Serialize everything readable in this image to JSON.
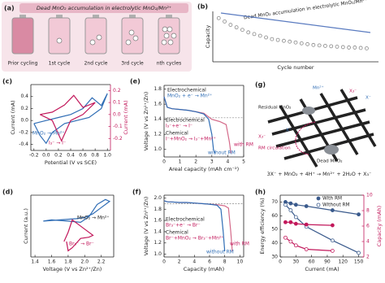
{
  "panel_a": {
    "panel": "(a)",
    "title": "Dead MnO₂ accumulation in electrolytic MnO₂/Mn²⁺",
    "stages": [
      "Prior cycling",
      "1st cycle",
      "2nd cycle",
      "3rd cycle",
      "nth cycles"
    ]
  },
  "panel_g": {
    "panel": "(g)",
    "labels": [
      "Mn²⁺",
      "X₃⁻",
      "Residual MnO₂",
      "X⁻",
      "X₃⁻",
      "RM circulation",
      "X⁻",
      "Dead MnO₂"
    ],
    "equation": "3X⁻ + MnO₂ + 4H⁺ → Mn²⁺ + 2H₂O + X₃⁻"
  },
  "chart_data": [
    {
      "type": "scatter",
      "panel": "(b)",
      "x_label": "Cycle number",
      "y_label": "Capacity",
      "annotations": [
        "Dead MnO₂ accumulation in electrolytic MnO₂/Mn²⁺"
      ],
      "xlim": [
        0,
        28
      ],
      "ylim": [
        3,
        9
      ],
      "series": [
        {
          "color": "#888888",
          "marker": "open",
          "x": [
            1,
            2,
            3,
            4,
            5,
            6,
            7,
            8,
            9,
            10,
            11,
            12,
            13,
            14,
            15,
            16,
            17,
            18,
            19,
            20,
            21,
            22,
            23,
            24,
            25,
            26
          ],
          "values": [
            8.2,
            7.8,
            7.4,
            7.1,
            6.8,
            6.5,
            6.3,
            6.1,
            5.9,
            5.7,
            5.6,
            5.5,
            5.4,
            5.3,
            5.2,
            5.1,
            5.0,
            4.95,
            4.9,
            4.85,
            4.8,
            4.75,
            4.7,
            4.7,
            4.65,
            4.6
          ]
        }
      ]
    },
    {
      "type": "line",
      "panel": "(c)",
      "x_label": "Potential (V vs SCE)",
      "y_label": "Current (mA)",
      "y2_label": "Current (mA)",
      "annotations": [
        "MnO₂ → Mn²⁺",
        "I₃⁻ → I⁻"
      ],
      "xlim": [
        -0.25,
        1.05
      ],
      "xticks": [
        -0.2,
        {
          "value": 0,
          "label": "0.0"
        },
        0.2,
        0.4,
        0.6,
        0.8,
        {
          "value": 1,
          "label": "1.0"
        }
      ],
      "ylim": [
        -0.5,
        0.6
      ],
      "yticks": [
        -0.4,
        -0.2,
        {
          "value": 0,
          "label": "0.0"
        },
        0.2,
        0.4
      ],
      "y2lim": [
        -0.3,
        0.25
      ],
      "y2ticks": [
        -0.2,
        -0.1,
        {
          "value": 0,
          "label": "0.0"
        },
        0.1,
        0.2
      ],
      "series": [
        {
          "color": "#2f6db5",
          "x": [
            -0.2,
            0.0,
            0.2,
            0.4,
            0.6,
            0.75,
            0.9,
            1.0,
            0.9,
            0.7,
            0.5,
            0.3,
            0.1,
            0.0,
            -0.1,
            -0.2
          ],
          "values": [
            -0.05,
            0.0,
            0.05,
            0.1,
            0.2,
            0.38,
            0.25,
            0.45,
            0.2,
            0.05,
            0.0,
            -0.05,
            -0.2,
            -0.38,
            -0.25,
            -0.05
          ]
        },
        {
          "color": "#c2185b",
          "axis": "y2",
          "x": [
            -0.1,
            0.1,
            0.3,
            0.45,
            0.6,
            0.8,
            0.6,
            0.4,
            0.25,
            0.1,
            -0.1
          ],
          "values": [
            0.0,
            0.02,
            0.08,
            0.16,
            0.06,
            0.1,
            0.0,
            -0.05,
            -0.22,
            -0.05,
            0.0
          ]
        }
      ]
    },
    {
      "type": "line",
      "panel": "(d)",
      "x_label": "Voltage (V vs Zn²⁺/Zn)",
      "y_label": "Current (a.u.)",
      "annotations": [
        "MnO₂ → Mn²⁺",
        "Br₃⁻ → Br⁻"
      ],
      "xlim": [
        1.35,
        2.35
      ],
      "xticks": [
        1.4,
        1.6,
        1.8,
        {
          "value": 2,
          "label": "2.0"
        },
        2.2
      ],
      "ylim": [
        0,
        10
      ],
      "series": [
        {
          "color": "#2f6db5",
          "x": [
            1.5,
            1.7,
            1.9,
            2.0,
            2.1,
            2.2,
            2.3,
            2.25,
            2.15,
            2.05,
            1.95,
            1.8,
            1.6,
            1.5
          ],
          "values": [
            5.8,
            6.0,
            6.2,
            6.4,
            7.0,
            8.0,
            9.0,
            9.3,
            8.5,
            6.5,
            5.6,
            5.8,
            6.0,
            5.8
          ]
        },
        {
          "color": "#c2185b",
          "x": [
            1.75,
            1.8,
            1.85,
            1.9,
            2.0,
            2.1,
            2.05,
            1.95,
            1.85,
            1.8,
            1.78
          ],
          "values": [
            2.5,
            4.0,
            6.0,
            5.5,
            4.5,
            3.5,
            3.2,
            3.0,
            1.5,
            1.0,
            2.5
          ]
        }
      ]
    },
    {
      "type": "line",
      "panel": "(e)",
      "x_label": "Areal capacity (mAh cm⁻²)",
      "y_label": "Voltage (V vs Zn²⁺/Zn)",
      "annotations": [
        "Electrochemical",
        "MnO₂ + e⁻ → Mn²⁺",
        "Electrochemical",
        "I₃⁻+e⁻ → I⁻",
        "Chemical",
        "I⁻+MnO₂ → I₃⁻+Mn²⁺"
      ],
      "xlim": [
        0,
        5
      ],
      "xticks": [
        0,
        1,
        2,
        3,
        4,
        5
      ],
      "ylim": [
        0.9,
        1.85
      ],
      "yticks": [
        {
          "value": 1,
          "label": "1.0"
        },
        1.2,
        1.4,
        1.6,
        1.8
      ],
      "hline": 1.42,
      "series": [
        {
          "name": "with RM",
          "color": "#d46a8a",
          "x": [
            0,
            0.2,
            0.5,
            1,
            1.5,
            2,
            2.5,
            3.0,
            3.5,
            3.9,
            4.1,
            4.2
          ],
          "values": [
            1.7,
            1.56,
            1.54,
            1.53,
            1.52,
            1.5,
            1.48,
            1.4,
            1.37,
            1.33,
            1.1,
            0.95
          ]
        },
        {
          "name": "without RM",
          "color": "#2f6db5",
          "x": [
            0,
            0.2,
            0.5,
            1,
            1.5,
            2,
            2.5,
            2.8,
            3.0,
            3.1,
            3.2
          ],
          "values": [
            1.7,
            1.56,
            1.54,
            1.53,
            1.52,
            1.5,
            1.47,
            1.4,
            1.2,
            1.0,
            0.95
          ]
        }
      ]
    },
    {
      "type": "line",
      "panel": "(f)",
      "x_label": "Capacity (mAh)",
      "y_label": "Voltage (V vs Zn²⁺/Zn)",
      "annotations": [
        "Electrochemical",
        "Br₃⁻+e⁻ → Br⁻",
        "Chemical",
        "Br⁻+MnO₂ → Br₃⁻+Mn²⁺"
      ],
      "xlim": [
        0,
        10.5
      ],
      "xticks": [
        0,
        2,
        4,
        6,
        8,
        10
      ],
      "ylim": [
        0.95,
        2.05
      ],
      "yticks": [
        {
          "value": 1,
          "label": "1.0"
        },
        1.2,
        1.4,
        1.6,
        1.8,
        {
          "value": 2,
          "label": "2.0"
        }
      ],
      "hline": 1.9,
      "series": [
        {
          "name": "with RM",
          "color": "#d46a8a",
          "x": [
            0,
            0.5,
            1,
            2,
            3,
            4,
            5,
            6,
            7,
            8,
            8.5,
            8.8,
            9.0
          ],
          "values": [
            1.95,
            1.93,
            1.93,
            1.92,
            1.92,
            1.91,
            1.9,
            1.89,
            1.88,
            1.86,
            1.82,
            1.4,
            1.05
          ]
        },
        {
          "name": "without RM",
          "color": "#2f6db5",
          "x": [
            0,
            0.5,
            1,
            2,
            3,
            4,
            5,
            6,
            7,
            7.5,
            7.8,
            8.0
          ],
          "values": [
            1.95,
            1.93,
            1.93,
            1.92,
            1.92,
            1.91,
            1.9,
            1.89,
            1.87,
            1.8,
            1.4,
            1.05
          ]
        }
      ]
    },
    {
      "type": "line",
      "panel": "(h)",
      "x_label": "Current (mA)",
      "y_label": "Energy efficiency (%)",
      "y2_label": "Capacity (mAh)",
      "xlim": [
        0,
        160
      ],
      "xticks": [
        0,
        30,
        60,
        90,
        120,
        150
      ],
      "ylim": [
        30,
        75
      ],
      "yticks": [
        30,
        40,
        50,
        60,
        70
      ],
      "y2lim": [
        2,
        10
      ],
      "y2ticks": [
        2,
        4,
        6,
        8,
        10
      ],
      "series": [
        {
          "name": "With RM",
          "color": "#3a5a8c",
          "marker": "filled",
          "x": [
            10,
            20,
            30,
            50,
            100,
            150
          ],
          "values": [
            70,
            69,
            68,
            67,
            64,
            61
          ]
        },
        {
          "name": "Without RM",
          "color": "#3a5a8c",
          "marker": "open",
          "x": [
            10,
            20,
            30,
            50,
            100,
            150
          ],
          "values": [
            68,
            64,
            59,
            52,
            42,
            33
          ]
        },
        {
          "color": "#c2185b",
          "axis": "y2",
          "marker": "filled",
          "x": [
            10,
            20,
            30,
            50,
            100
          ],
          "values": [
            6.5,
            6.5,
            6.3,
            6.2,
            6.1
          ]
        },
        {
          "color": "#c2185b",
          "axis": "y2",
          "marker": "open",
          "x": [
            10,
            20,
            30,
            50,
            100
          ],
          "values": [
            4.5,
            4.0,
            3.5,
            3.0,
            2.8
          ]
        }
      ]
    }
  ]
}
